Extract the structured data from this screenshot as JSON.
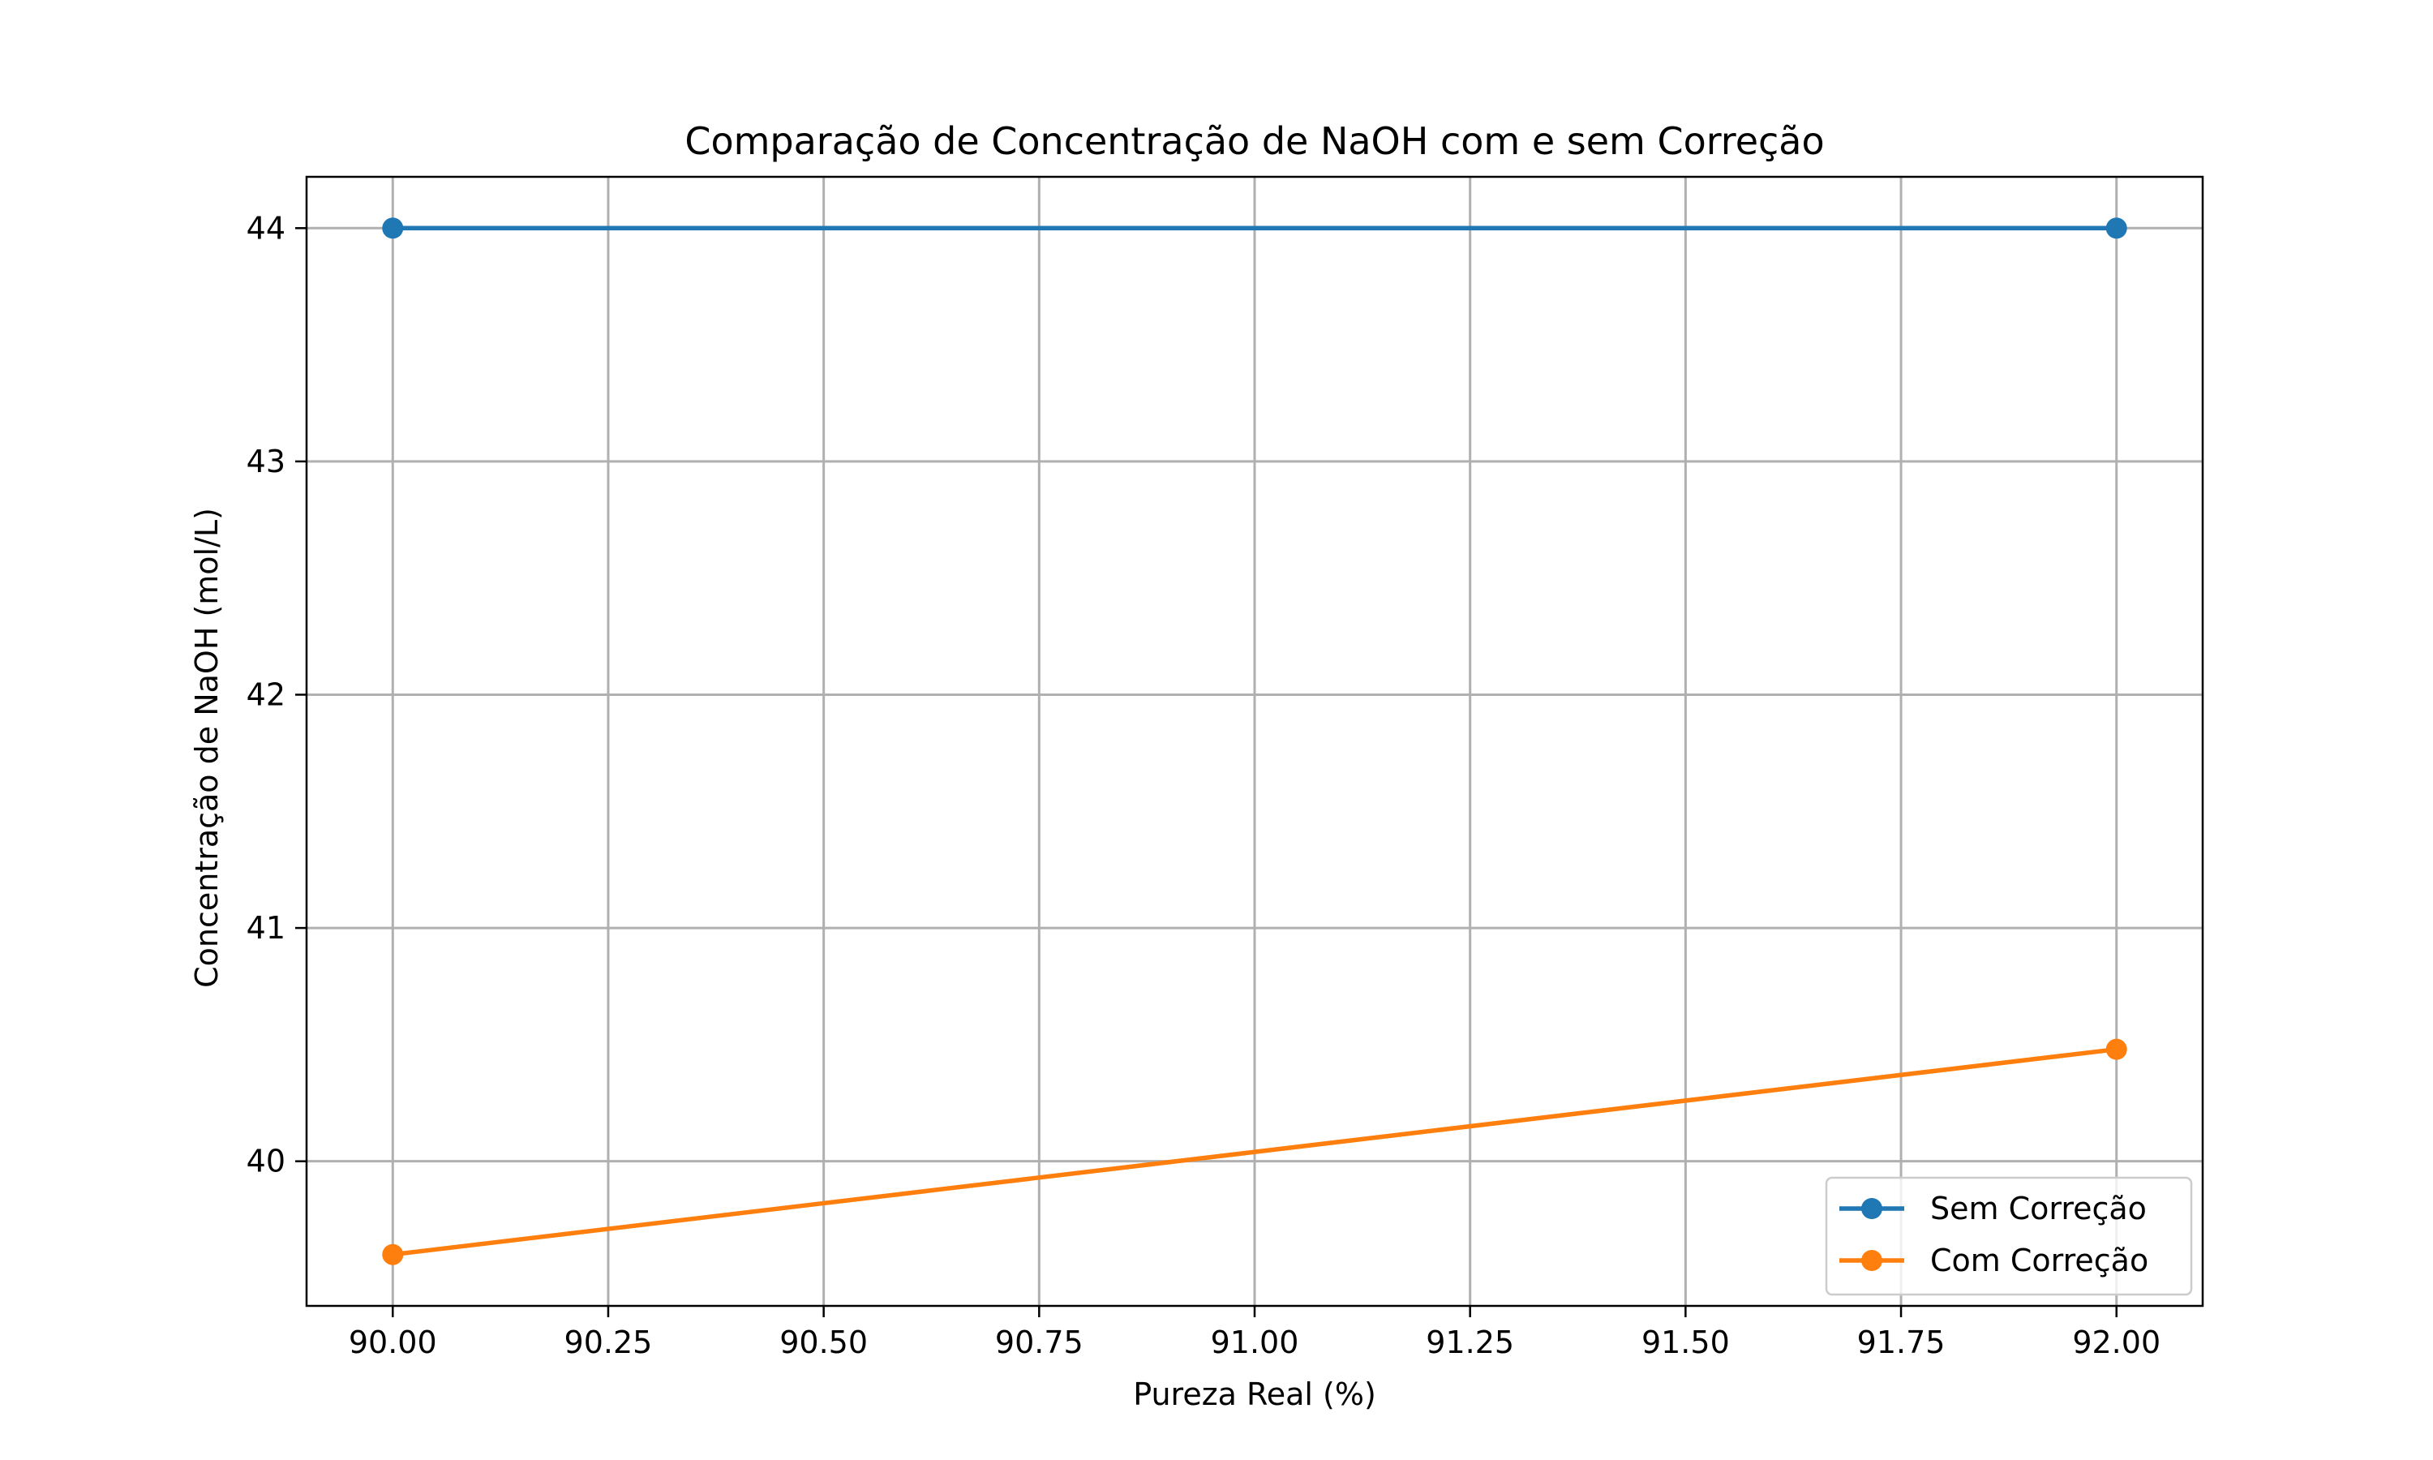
{
  "chart_data": {
    "type": "line",
    "title": "Comparação de Concentração de NaOH com e sem Correção",
    "xlabel": "Pureza Real (%)",
    "ylabel": "Concentração de NaOH (mol/L)",
    "x": [
      90.0,
      92.0
    ],
    "xlim": [
      89.9,
      92.1
    ],
    "ylim": [
      39.38,
      44.22
    ],
    "xticks": [
      90.0,
      90.25,
      90.5,
      90.75,
      91.0,
      91.25,
      91.5,
      91.75,
      92.0
    ],
    "xtick_labels": [
      "90.00",
      "90.25",
      "90.50",
      "90.75",
      "91.00",
      "91.25",
      "91.50",
      "91.75",
      "92.00"
    ],
    "yticks": [
      40,
      41,
      42,
      43,
      44
    ],
    "ytick_labels": [
      "40",
      "41",
      "42",
      "43",
      "44"
    ],
    "grid": true,
    "legend_position": "lower-right",
    "series": [
      {
        "name": "Sem Correção",
        "color": "#1f77b4",
        "marker": "circle",
        "values": [
          44.0,
          44.0
        ]
      },
      {
        "name": "Com Correção",
        "color": "#ff7f0e",
        "marker": "circle",
        "values": [
          39.6,
          40.48
        ]
      }
    ]
  }
}
